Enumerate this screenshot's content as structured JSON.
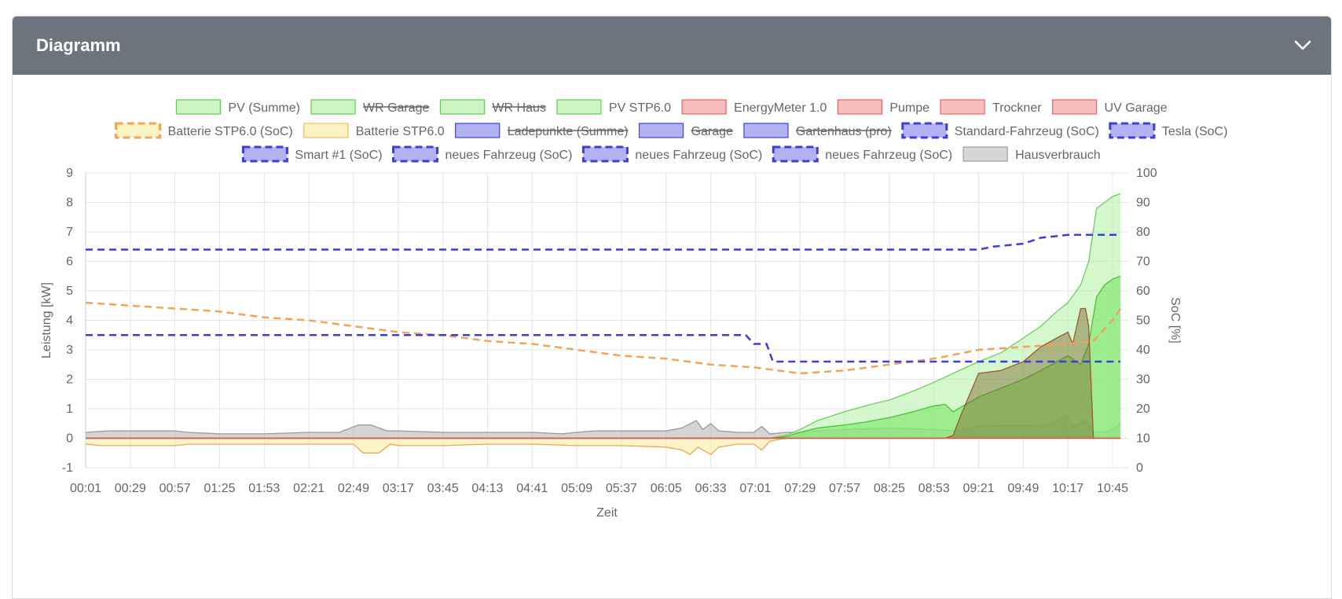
{
  "card": {
    "title": "Diagramm",
    "toggle_icon": "chevron-down-icon"
  },
  "chart_data": {
    "type": "area",
    "xlabel": "Zeit",
    "ylabel": "Leistung [kW]",
    "y2label": "SoC [%]",
    "ylim": [
      -1,
      9
    ],
    "y2lim": [
      0,
      100
    ],
    "x_ticks": [
      "00:01",
      "00:29",
      "00:57",
      "01:25",
      "01:53",
      "02:21",
      "02:49",
      "03:17",
      "03:45",
      "04:13",
      "04:41",
      "05:09",
      "05:37",
      "06:05",
      "06:33",
      "07:01",
      "07:29",
      "07:57",
      "08:25",
      "08:53",
      "09:21",
      "09:49",
      "10:17",
      "10:45"
    ],
    "y_ticks": [
      -1,
      0,
      1,
      2,
      3,
      4,
      5,
      6,
      7,
      8,
      9
    ],
    "y2_ticks": [
      0,
      10,
      20,
      30,
      40,
      50,
      60,
      70,
      80,
      90,
      100
    ],
    "grid": true,
    "legend_position": "top",
    "legend": [
      {
        "label": "PV (Summe)",
        "fill": "#ccf5c4",
        "stroke": "#6ccf5b",
        "hidden": false,
        "dashed": false
      },
      {
        "label": "WR Garage",
        "fill": "#ccf5c4",
        "stroke": "#6ccf5b",
        "hidden": true,
        "dashed": false
      },
      {
        "label": "WR Haus",
        "fill": "#ccf5c4",
        "stroke": "#6ccf5b",
        "hidden": true,
        "dashed": false
      },
      {
        "label": "PV STP6.0",
        "fill": "#ccf5c4",
        "stroke": "#6ccf5b",
        "hidden": false,
        "dashed": false
      },
      {
        "label": "EnergyMeter 1.0",
        "fill": "#f8bcbc",
        "stroke": "#ee6b6b",
        "hidden": false,
        "dashed": false
      },
      {
        "label": "Pumpe",
        "fill": "#f8bcbc",
        "stroke": "#ee6b6b",
        "hidden": false,
        "dashed": false
      },
      {
        "label": "Trockner",
        "fill": "#f8bcbc",
        "stroke": "#ee6b6b",
        "hidden": false,
        "dashed": false
      },
      {
        "label": "UV Garage",
        "fill": "#f8bcbc",
        "stroke": "#ee6b6b",
        "hidden": false,
        "dashed": false
      },
      {
        "label": "Batterie STP6.0 (SoC)",
        "fill": "#fbf3c3",
        "stroke": "#f0a45a",
        "hidden": false,
        "dashed": true
      },
      {
        "label": "Batterie STP6.0",
        "fill": "#fbf3c3",
        "stroke": "#f0c070",
        "hidden": false,
        "dashed": false
      },
      {
        "label": "Ladepunkte (Summe)",
        "fill": "#b3b3f3",
        "stroke": "#4a4ae0",
        "hidden": true,
        "dashed": false
      },
      {
        "label": "Garage",
        "fill": "#b3b3f3",
        "stroke": "#4a4ae0",
        "hidden": true,
        "dashed": false
      },
      {
        "label": "Gartenhaus (pro)",
        "fill": "#b3b3f3",
        "stroke": "#4a4ae0",
        "hidden": true,
        "dashed": false
      },
      {
        "label": "Standard-Fahrzeug (SoC)",
        "fill": "#b3b3f3",
        "stroke": "#3c3ce0",
        "hidden": false,
        "dashed": true
      },
      {
        "label": "Tesla (SoC)",
        "fill": "#b3b3f3",
        "stroke": "#3c3ce0",
        "hidden": false,
        "dashed": true
      },
      {
        "label": "Smart #1 (SoC)",
        "fill": "#b3b3f3",
        "stroke": "#3c3ce0",
        "hidden": false,
        "dashed": true
      },
      {
        "label": "neues Fahrzeug (SoC)",
        "fill": "#b3b3f3",
        "stroke": "#3c3ce0",
        "hidden": false,
        "dashed": true
      },
      {
        "label": "neues Fahrzeug (SoC)",
        "fill": "#b3b3f3",
        "stroke": "#3c3ce0",
        "hidden": false,
        "dashed": true
      },
      {
        "label": "neues Fahrzeug (SoC)",
        "fill": "#b3b3f3",
        "stroke": "#3c3ce0",
        "hidden": false,
        "dashed": true
      },
      {
        "label": "Hausverbrauch",
        "fill": "#d6d6d6",
        "stroke": "#a0a0a0",
        "hidden": false,
        "dashed": false
      }
    ],
    "series": [
      {
        "name": "Hausverbrauch",
        "axis": "left",
        "kind": "area",
        "fill": "rgba(160,160,160,0.45)",
        "stroke": "#9a9a9a",
        "points": [
          [
            "00:01",
            0.2
          ],
          [
            "00:15",
            0.25
          ],
          [
            "00:29",
            0.25
          ],
          [
            "00:57",
            0.25
          ],
          [
            "01:05",
            0.2
          ],
          [
            "01:25",
            0.15
          ],
          [
            "01:53",
            0.15
          ],
          [
            "02:21",
            0.2
          ],
          [
            "02:40",
            0.2
          ],
          [
            "02:52",
            0.45
          ],
          [
            "03:00",
            0.45
          ],
          [
            "03:10",
            0.25
          ],
          [
            "03:17",
            0.25
          ],
          [
            "03:45",
            0.2
          ],
          [
            "04:13",
            0.2
          ],
          [
            "04:41",
            0.2
          ],
          [
            "05:00",
            0.15
          ],
          [
            "05:09",
            0.2
          ],
          [
            "05:20",
            0.25
          ],
          [
            "05:37",
            0.25
          ],
          [
            "06:05",
            0.25
          ],
          [
            "06:15",
            0.35
          ],
          [
            "06:24",
            0.6
          ],
          [
            "06:28",
            0.3
          ],
          [
            "06:33",
            0.5
          ],
          [
            "06:38",
            0.25
          ],
          [
            "06:50",
            0.2
          ],
          [
            "07:00",
            0.2
          ],
          [
            "07:05",
            0.4
          ],
          [
            "07:10",
            0.15
          ],
          [
            "07:20",
            0.2
          ],
          [
            "07:29",
            0.2
          ],
          [
            "07:40",
            0.25
          ],
          [
            "07:57",
            0.3
          ],
          [
            "08:25",
            0.35
          ],
          [
            "08:53",
            0.3
          ],
          [
            "09:05",
            0.25
          ],
          [
            "09:21",
            0.4
          ],
          [
            "09:49",
            0.45
          ],
          [
            "10:00",
            0.4
          ],
          [
            "10:10",
            0.6
          ],
          [
            "10:17",
            0.8
          ],
          [
            "10:20",
            0.4
          ],
          [
            "10:28",
            0.6
          ],
          [
            "10:33",
            0.2
          ],
          [
            "10:40",
            0.2
          ],
          [
            "10:45",
            0.3
          ],
          [
            "10:50",
            0.5
          ]
        ]
      },
      {
        "name": "Batterie STP6.0",
        "axis": "left",
        "kind": "area",
        "fill": "rgba(246,237,164,0.6)",
        "stroke": "#f0a45a",
        "points": [
          [
            "00:01",
            -0.2
          ],
          [
            "00:10",
            -0.25
          ],
          [
            "00:29",
            -0.25
          ],
          [
            "00:57",
            -0.25
          ],
          [
            "01:05",
            -0.2
          ],
          [
            "01:25",
            -0.2
          ],
          [
            "01:53",
            -0.2
          ],
          [
            "02:21",
            -0.2
          ],
          [
            "02:49",
            -0.2
          ],
          [
            "02:55",
            -0.5
          ],
          [
            "03:05",
            -0.5
          ],
          [
            "03:12",
            -0.2
          ],
          [
            "03:17",
            -0.25
          ],
          [
            "03:45",
            -0.25
          ],
          [
            "04:13",
            -0.2
          ],
          [
            "04:41",
            -0.2
          ],
          [
            "05:09",
            -0.25
          ],
          [
            "05:37",
            -0.25
          ],
          [
            "06:05",
            -0.3
          ],
          [
            "06:15",
            -0.4
          ],
          [
            "06:20",
            -0.55
          ],
          [
            "06:25",
            -0.3
          ],
          [
            "06:33",
            -0.55
          ],
          [
            "06:38",
            -0.3
          ],
          [
            "06:50",
            -0.2
          ],
          [
            "07:00",
            -0.2
          ],
          [
            "07:05",
            -0.4
          ],
          [
            "07:10",
            -0.1
          ],
          [
            "07:20",
            0
          ],
          [
            "10:50",
            0
          ]
        ]
      },
      {
        "name": "PV (Summe)",
        "axis": "left",
        "kind": "area",
        "fill": "rgba(178,240,166,0.55)",
        "stroke": "#6ccf5b",
        "points": [
          [
            "00:01",
            0
          ],
          [
            "07:10",
            0
          ],
          [
            "07:20",
            0.1
          ],
          [
            "07:29",
            0.3
          ],
          [
            "07:40",
            0.6
          ],
          [
            "07:57",
            0.9
          ],
          [
            "08:10",
            1.1
          ],
          [
            "08:25",
            1.3
          ],
          [
            "08:40",
            1.6
          ],
          [
            "08:53",
            1.9
          ],
          [
            "09:05",
            2.2
          ],
          [
            "09:21",
            2.6
          ],
          [
            "09:35",
            2.9
          ],
          [
            "09:49",
            3.4
          ],
          [
            "10:00",
            3.8
          ],
          [
            "10:10",
            4.3
          ],
          [
            "10:17",
            4.6
          ],
          [
            "10:25",
            5.2
          ],
          [
            "10:30",
            6.0
          ],
          [
            "10:35",
            7.8
          ],
          [
            "10:40",
            8.0
          ],
          [
            "10:45",
            8.2
          ],
          [
            "10:50",
            8.3
          ]
        ]
      },
      {
        "name": "PV STP6.0",
        "axis": "left",
        "kind": "area",
        "fill": "rgba(120,230,100,0.6)",
        "stroke": "#4cbf3a",
        "points": [
          [
            "00:01",
            0
          ],
          [
            "07:10",
            0
          ],
          [
            "07:20",
            0.05
          ],
          [
            "07:29",
            0.2
          ],
          [
            "07:40",
            0.35
          ],
          [
            "07:57",
            0.45
          ],
          [
            "08:10",
            0.55
          ],
          [
            "08:25",
            0.7
          ],
          [
            "08:40",
            0.9
          ],
          [
            "08:53",
            1.1
          ],
          [
            "09:00",
            1.15
          ],
          [
            "09:05",
            0.9
          ],
          [
            "09:21",
            1.4
          ],
          [
            "09:35",
            1.7
          ],
          [
            "09:49",
            2.0
          ],
          [
            "10:00",
            2.3
          ],
          [
            "10:10",
            2.6
          ],
          [
            "10:17",
            2.8
          ],
          [
            "10:25",
            2.5
          ],
          [
            "10:30",
            3.2
          ],
          [
            "10:35",
            4.8
          ],
          [
            "10:40",
            5.2
          ],
          [
            "10:45",
            5.4
          ],
          [
            "10:50",
            5.5
          ]
        ]
      },
      {
        "name": "EnergyMeter 1.0",
        "axis": "left",
        "kind": "area",
        "fill": "rgba(120,100,40,0.45)",
        "stroke": "#9b5a2a",
        "points": [
          [
            "00:01",
            0
          ],
          [
            "09:00",
            0
          ],
          [
            "09:05",
            0.1
          ],
          [
            "09:10",
            0.8
          ],
          [
            "09:21",
            2.2
          ],
          [
            "09:35",
            2.3
          ],
          [
            "09:49",
            2.6
          ],
          [
            "10:00",
            3.1
          ],
          [
            "10:10",
            3.4
          ],
          [
            "10:17",
            3.6
          ],
          [
            "10:20",
            3.2
          ],
          [
            "10:25",
            4.4
          ],
          [
            "10:28",
            4.4
          ],
          [
            "10:30",
            3.8
          ],
          [
            "10:33",
            0.0
          ],
          [
            "10:50",
            0
          ]
        ]
      },
      {
        "name": "Pumpe",
        "axis": "left",
        "kind": "line",
        "stroke": "#e05050",
        "points": [
          [
            "00:01",
            0
          ],
          [
            "10:50",
            0
          ]
        ]
      },
      {
        "name": "Batterie STP6.0 (SoC)",
        "axis": "right",
        "kind": "dash",
        "stroke": "#f0a45a",
        "points": [
          [
            "00:01",
            56
          ],
          [
            "00:29",
            55
          ],
          [
            "00:57",
            54
          ],
          [
            "01:25",
            53
          ],
          [
            "01:53",
            51
          ],
          [
            "02:21",
            50
          ],
          [
            "02:49",
            48
          ],
          [
            "03:17",
            46
          ],
          [
            "03:45",
            45
          ],
          [
            "04:13",
            43
          ],
          [
            "04:41",
            42
          ],
          [
            "05:09",
            40
          ],
          [
            "05:37",
            38
          ],
          [
            "06:05",
            37
          ],
          [
            "06:33",
            35
          ],
          [
            "07:01",
            34
          ],
          [
            "07:15",
            33
          ],
          [
            "07:29",
            32
          ],
          [
            "07:57",
            33
          ],
          [
            "08:25",
            35
          ],
          [
            "08:53",
            37
          ],
          [
            "09:21",
            40
          ],
          [
            "09:49",
            41
          ],
          [
            "10:17",
            42
          ],
          [
            "10:33",
            43
          ],
          [
            "10:45",
            50
          ],
          [
            "10:50",
            54
          ]
        ]
      },
      {
        "name": "Tesla (SoC)",
        "axis": "right",
        "kind": "dash",
        "stroke": "#3c3ce0",
        "points": [
          [
            "00:01",
            74
          ],
          [
            "09:21",
            74
          ],
          [
            "09:30",
            75
          ],
          [
            "09:49",
            76
          ],
          [
            "10:00",
            78
          ],
          [
            "10:17",
            79
          ],
          [
            "10:50",
            79
          ]
        ]
      },
      {
        "name": "Standard-Fahrzeug (SoC)",
        "axis": "right",
        "kind": "dash",
        "stroke": "#3c3ce0",
        "points": [
          [
            "00:01",
            45
          ],
          [
            "06:55",
            45
          ],
          [
            "07:00",
            42
          ],
          [
            "07:08",
            42
          ],
          [
            "07:12",
            36
          ],
          [
            "10:50",
            36
          ]
        ]
      }
    ]
  }
}
